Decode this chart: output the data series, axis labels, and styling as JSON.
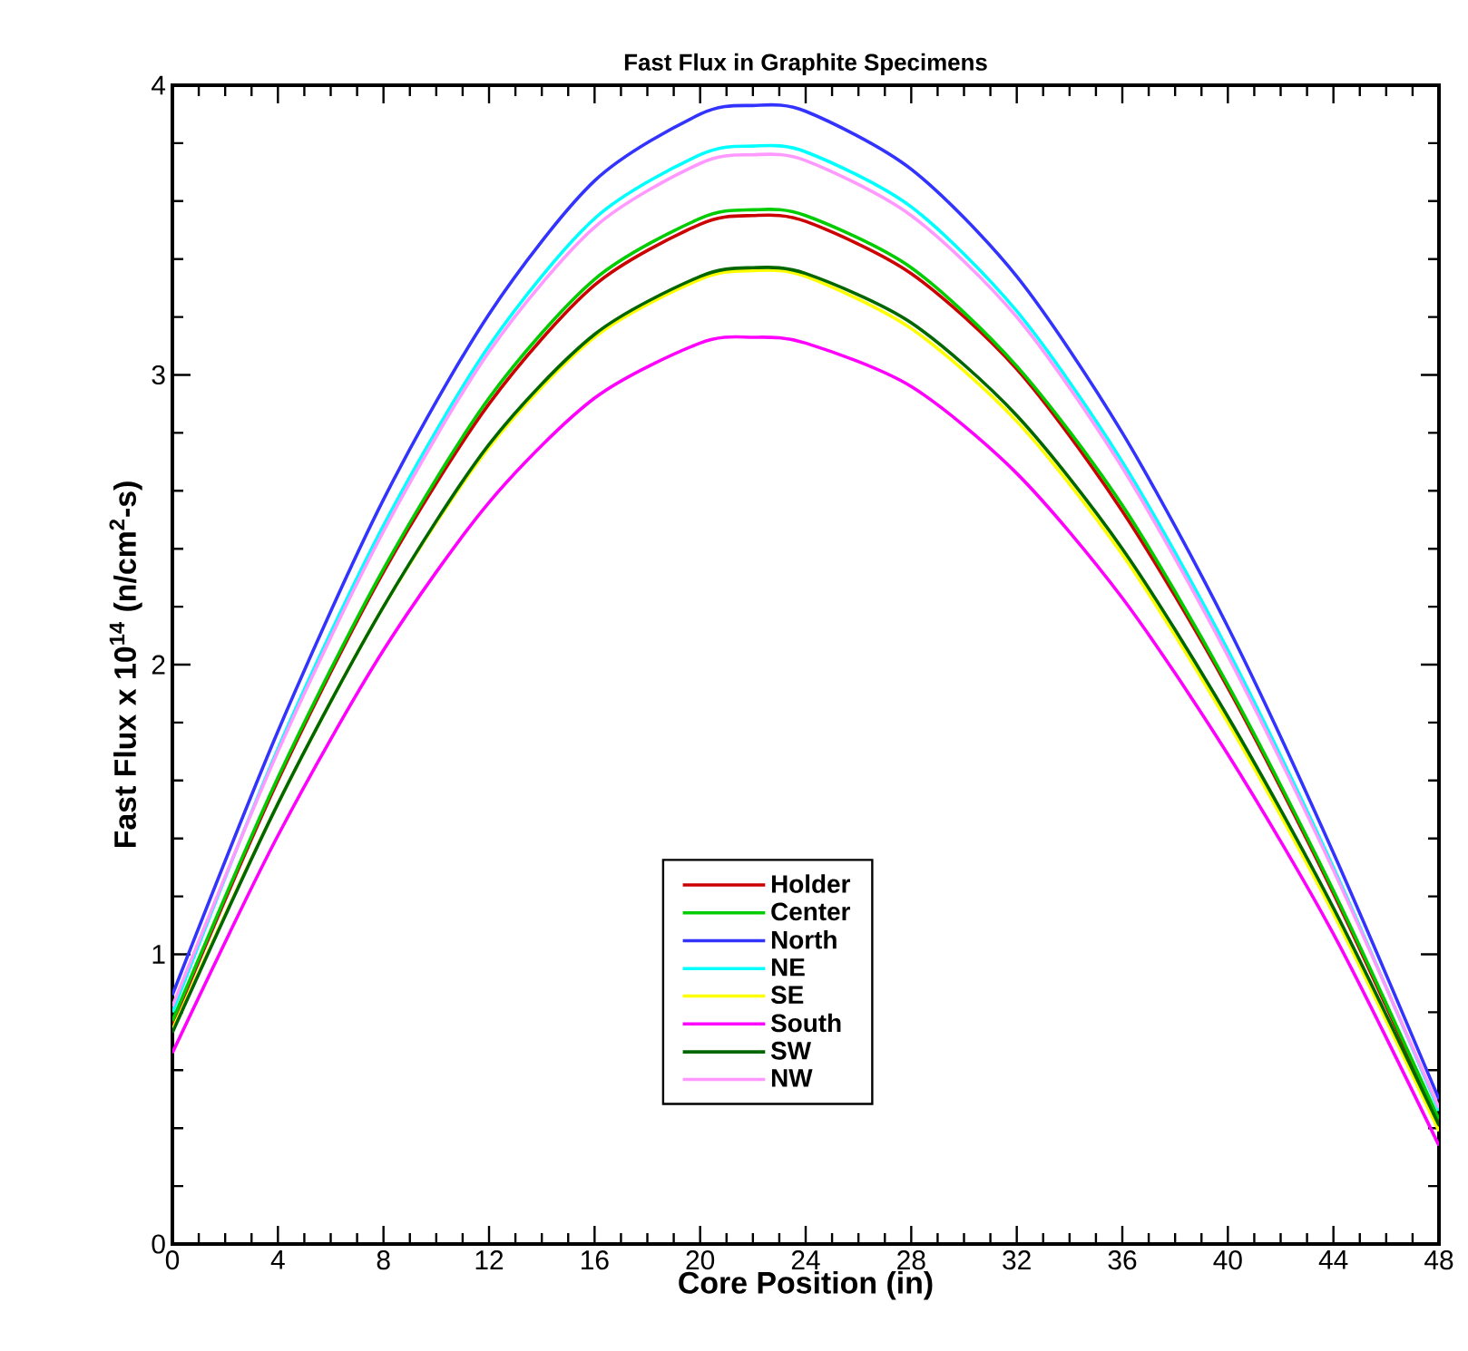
{
  "chart_data": {
    "type": "line",
    "title": "Fast Flux in Graphite Specimens",
    "xlabel": "Core Position (in)",
    "ylabel": "Fast Flux x 10$^{14}$  (n/cm$^{2}$-s)",
    "x": [
      0,
      4,
      8,
      12,
      16,
      20,
      22,
      24,
      28,
      32,
      36,
      40,
      44,
      48
    ],
    "series": [
      {
        "name": "Holder",
        "color": "#cc0000",
        "values": [
          0.76,
          1.6,
          2.32,
          2.9,
          3.31,
          3.52,
          3.55,
          3.53,
          3.35,
          3.02,
          2.53,
          1.92,
          1.21,
          0.42
        ]
      },
      {
        "name": "Center",
        "color": "#00cc00",
        "values": [
          0.77,
          1.61,
          2.33,
          2.92,
          3.33,
          3.54,
          3.57,
          3.55,
          3.37,
          3.03,
          2.55,
          1.93,
          1.22,
          0.43
        ]
      },
      {
        "name": "North",
        "color": "#3333ff",
        "values": [
          0.86,
          1.77,
          2.57,
          3.21,
          3.67,
          3.9,
          3.93,
          3.91,
          3.71,
          3.34,
          2.8,
          2.13,
          1.35,
          0.5
        ]
      },
      {
        "name": "NE",
        "color": "#00ffff",
        "values": [
          0.8,
          1.71,
          2.48,
          3.1,
          3.54,
          3.76,
          3.79,
          3.77,
          3.58,
          3.22,
          2.7,
          2.05,
          1.3,
          0.46
        ]
      },
      {
        "name": "SE",
        "color": "#ffff00",
        "values": [
          0.74,
          1.52,
          2.2,
          2.75,
          3.13,
          3.33,
          3.36,
          3.34,
          3.16,
          2.84,
          2.38,
          1.8,
          1.14,
          0.39
        ]
      },
      {
        "name": "South",
        "color": "#ff00ff",
        "values": [
          0.66,
          1.41,
          2.05,
          2.56,
          2.92,
          3.11,
          3.13,
          3.11,
          2.96,
          2.66,
          2.23,
          1.69,
          1.07,
          0.34
        ]
      },
      {
        "name": "SW",
        "color": "#006600",
        "values": [
          0.73,
          1.52,
          2.2,
          2.76,
          3.14,
          3.34,
          3.37,
          3.35,
          3.18,
          2.86,
          2.4,
          1.82,
          1.16,
          0.41
        ]
      },
      {
        "name": "NW",
        "color": "#ff99ff",
        "values": [
          0.82,
          1.7,
          2.46,
          3.08,
          3.51,
          3.73,
          3.76,
          3.74,
          3.55,
          3.2,
          2.68,
          2.03,
          1.29,
          0.47
        ]
      }
    ],
    "xlim": [
      0,
      48
    ],
    "ylim": [
      0,
      4
    ],
    "xticks": [
      0,
      4,
      8,
      12,
      16,
      20,
      24,
      28,
      32,
      36,
      40,
      44,
      48
    ],
    "yticks": [
      0,
      1,
      2,
      3,
      4
    ],
    "legend": "bottom",
    "grid": false,
    "marker": "none",
    "line_style": "solid"
  }
}
